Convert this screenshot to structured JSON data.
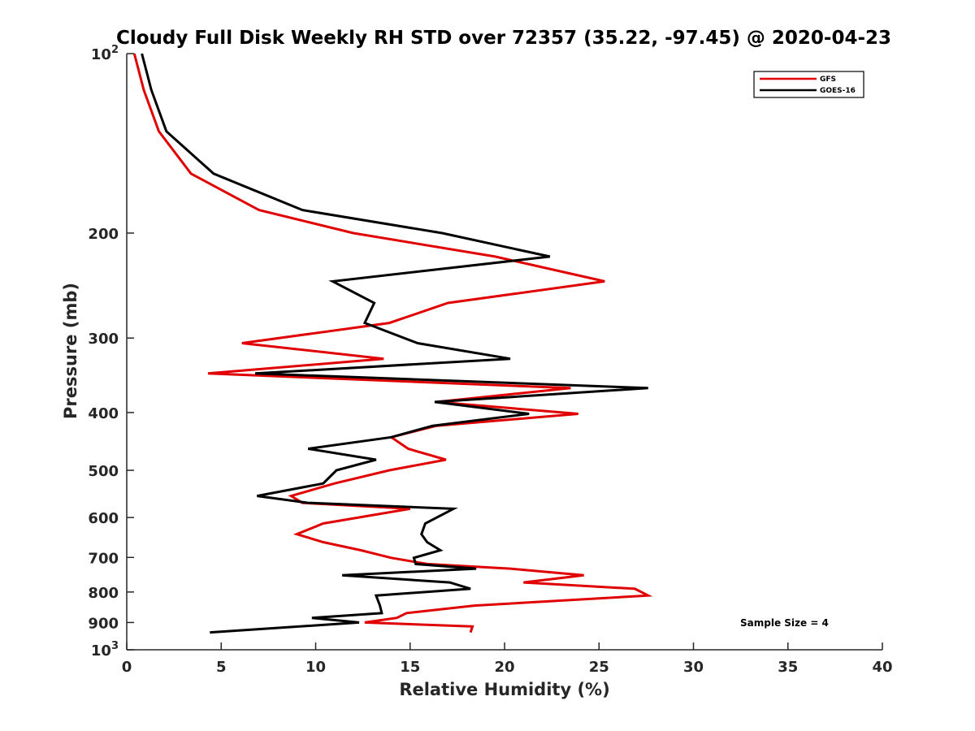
{
  "chart_data": {
    "type": "line",
    "title": "Cloudy Full Disk Weekly RH STD over 72357 (35.22, -97.45) @ 2020-04-23",
    "xlabel": "Relative Humidity (%)",
    "ylabel": "Pressure (mb)",
    "xlim": [
      0,
      40
    ],
    "ylim": [
      100,
      1000
    ],
    "yscale": "log",
    "y_reversed": true,
    "x_ticks": [
      "0",
      "5",
      "10",
      "15",
      "20",
      "25",
      "30",
      "35",
      "40"
    ],
    "y_ticks": [
      {
        "value": 100,
        "base": "10",
        "exp": "2"
      },
      {
        "value": 200,
        "label": "200"
      },
      {
        "value": 300,
        "label": "300"
      },
      {
        "value": 400,
        "label": "400"
      },
      {
        "value": 500,
        "label": "500"
      },
      {
        "value": 600,
        "label": "600"
      },
      {
        "value": 700,
        "label": "700"
      },
      {
        "value": 800,
        "label": "800"
      },
      {
        "value": 900,
        "label": "900"
      },
      {
        "value": 1000,
        "base": "10",
        "exp": "3"
      }
    ],
    "grid": false,
    "legend_position": "top-right",
    "series": [
      {
        "name": "GFS",
        "color": "#e00000",
        "points": [
          [
            0.4,
            100
          ],
          [
            0.9,
            115
          ],
          [
            1.7,
            135
          ],
          [
            3.4,
            159
          ],
          [
            7.0,
            183
          ],
          [
            12.0,
            200
          ],
          [
            19.5,
            219
          ],
          [
            25.3,
            241
          ],
          [
            17.0,
            262
          ],
          [
            13.9,
            283
          ],
          [
            6.1,
            306
          ],
          [
            13.6,
            325
          ],
          [
            4.3,
            344
          ],
          [
            23.5,
            364
          ],
          [
            16.4,
            384
          ],
          [
            23.9,
            402
          ],
          [
            16.4,
            421
          ],
          [
            14.0,
            440
          ],
          [
            14.9,
            460
          ],
          [
            16.9,
            480
          ],
          [
            13.9,
            500
          ],
          [
            11.0,
            526
          ],
          [
            8.7,
            552
          ],
          [
            9.3,
            567
          ],
          [
            15.0,
            580
          ],
          [
            10.4,
            614
          ],
          [
            9.0,
            640
          ],
          [
            10.4,
            660
          ],
          [
            12.4,
            681
          ],
          [
            14.0,
            701
          ],
          [
            15.9,
            718
          ],
          [
            20.3,
            731
          ],
          [
            24.2,
            750
          ],
          [
            21.0,
            771
          ],
          [
            26.9,
            790
          ],
          [
            27.6,
            811
          ],
          [
            18.4,
            843
          ],
          [
            14.8,
            868
          ],
          [
            14.3,
            884
          ],
          [
            12.6,
            900
          ],
          [
            18.3,
            914
          ],
          [
            18.2,
            935
          ]
        ]
      },
      {
        "name": "GOES-16",
        "color": "#000000",
        "points": [
          [
            0.8,
            100
          ],
          [
            1.3,
            115
          ],
          [
            2.1,
            135
          ],
          [
            4.6,
            159
          ],
          [
            9.3,
            183
          ],
          [
            16.7,
            200
          ],
          [
            22.4,
            219
          ],
          [
            10.9,
            241
          ],
          [
            13.1,
            262
          ],
          [
            12.6,
            283
          ],
          [
            15.4,
            306
          ],
          [
            20.3,
            325
          ],
          [
            6.8,
            344
          ],
          [
            27.6,
            364
          ],
          [
            16.3,
            384
          ],
          [
            21.3,
            402
          ],
          [
            16.2,
            421
          ],
          [
            14.0,
            440
          ],
          [
            9.6,
            460
          ],
          [
            13.2,
            480
          ],
          [
            11.1,
            500
          ],
          [
            10.4,
            526
          ],
          [
            6.9,
            552
          ],
          [
            9.6,
            567
          ],
          [
            17.3,
            580
          ],
          [
            15.8,
            614
          ],
          [
            15.6,
            640
          ],
          [
            15.9,
            660
          ],
          [
            16.6,
            681
          ],
          [
            15.2,
            701
          ],
          [
            15.3,
            718
          ],
          [
            18.5,
            731
          ],
          [
            11.4,
            750
          ],
          [
            17.1,
            771
          ],
          [
            18.2,
            790
          ],
          [
            13.2,
            811
          ],
          [
            13.4,
            843
          ],
          [
            13.5,
            868
          ],
          [
            9.8,
            884
          ],
          [
            12.3,
            900
          ],
          [
            4.4,
            935
          ]
        ]
      }
    ],
    "annotation": "Sample Size = 4"
  }
}
